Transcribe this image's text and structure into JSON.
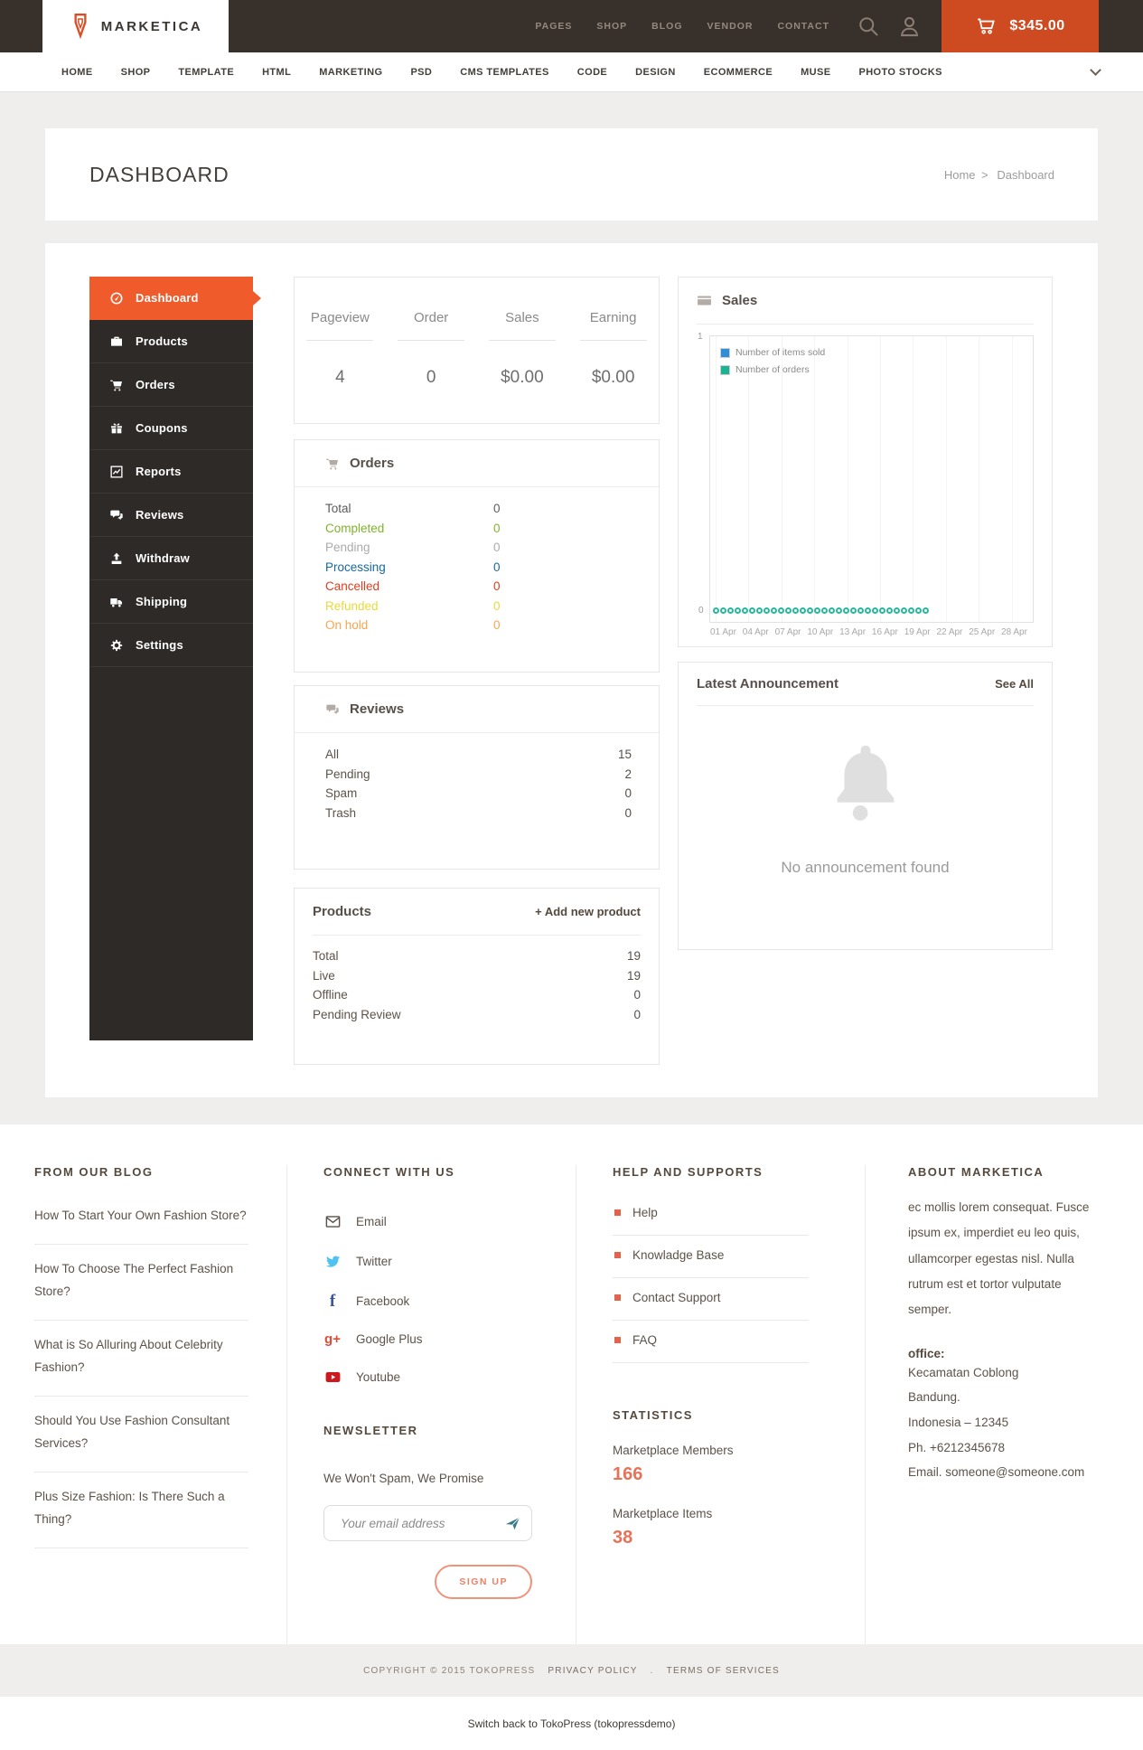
{
  "colors": {
    "accent_orange": "#f05b2c",
    "cart_orange": "#ce4a20",
    "header_dark": "#38302b",
    "sidebar_dark": "#2e2a27",
    "chart_blue": "#2e8fd8",
    "chart_teal": "#29b79c",
    "stat_salmon": "#e87258"
  },
  "topbar": {
    "brand": "MARKETICA",
    "menu": [
      {
        "label": "PAGES"
      },
      {
        "label": "SHOP"
      },
      {
        "label": "BLOG"
      },
      {
        "label": "VENDOR"
      },
      {
        "label": "CONTACT"
      }
    ],
    "cart_total": "$345.00"
  },
  "mainnav": {
    "items": [
      {
        "label": "HOME"
      },
      {
        "label": "SHOP"
      },
      {
        "label": "TEMPLATE"
      },
      {
        "label": "HTML"
      },
      {
        "label": "MARKETING"
      },
      {
        "label": "PSD"
      },
      {
        "label": "CMS TEMPLATES"
      },
      {
        "label": "CODE"
      },
      {
        "label": "DESIGN"
      },
      {
        "label": "ECOMMERCE"
      },
      {
        "label": "MUSE"
      },
      {
        "label": "PHOTO STOCKS"
      }
    ]
  },
  "page": {
    "title": "DASHBOARD",
    "breadcrumb": {
      "home": "Home",
      "sep": ">",
      "current": "Dashboard"
    }
  },
  "sidebar": {
    "items": [
      {
        "label": "Dashboard"
      },
      {
        "label": "Products"
      },
      {
        "label": "Orders"
      },
      {
        "label": "Coupons"
      },
      {
        "label": "Reports"
      },
      {
        "label": "Reviews"
      },
      {
        "label": "Withdraw"
      },
      {
        "label": "Shipping"
      },
      {
        "label": "Settings"
      }
    ]
  },
  "stats": {
    "columns": [
      {
        "label": "Pageview",
        "value": "4"
      },
      {
        "label": "Order",
        "value": "0"
      },
      {
        "label": "Sales",
        "value": "$0.00"
      },
      {
        "label": "Earning",
        "value": "$0.00"
      }
    ]
  },
  "orders_panel": {
    "title": "Orders",
    "rows": [
      {
        "label": "Total",
        "value": "0",
        "color": "#5b5b5b"
      },
      {
        "label": "Completed",
        "value": "0",
        "color": "#7eb42c"
      },
      {
        "label": "Pending",
        "value": "0",
        "color": "#ababab"
      },
      {
        "label": "Processing",
        "value": "0",
        "color": "#17699e"
      },
      {
        "label": "Cancelled",
        "value": "0",
        "color": "#df3d1d"
      },
      {
        "label": "Refunded",
        "value": "0",
        "color": "#ead93a"
      },
      {
        "label": "On hold",
        "value": "0",
        "color": "#f7a54f"
      }
    ]
  },
  "reviews_panel": {
    "title": "Reviews",
    "rows": [
      {
        "label": "All",
        "value": "15"
      },
      {
        "label": "Pending",
        "value": "2"
      },
      {
        "label": "Spam",
        "value": "0"
      },
      {
        "label": "Trash",
        "value": "0"
      }
    ]
  },
  "products_panel": {
    "title": "Products",
    "action": "+ Add new product",
    "rows": [
      {
        "label": "Total",
        "value": "19"
      },
      {
        "label": "Live",
        "value": "19"
      },
      {
        "label": "Offline",
        "value": "0"
      },
      {
        "label": "Pending Review",
        "value": "0"
      }
    ]
  },
  "sales_panel": {
    "title": "Sales",
    "y_top": "1",
    "y_bottom": "0",
    "legend": [
      {
        "label": "Number of items sold",
        "color": "#2e8fd8"
      },
      {
        "label": "Number of orders",
        "color": "#29b79c"
      }
    ],
    "x_ticks": [
      "01 Apr",
      "04 Apr",
      "07 Apr",
      "10 Apr",
      "13 Apr",
      "16 Apr",
      "19 Apr",
      "22 Apr",
      "25 Apr",
      "28 Apr"
    ]
  },
  "chart_data": {
    "type": "line",
    "title": "Sales",
    "ylim": [
      0,
      1
    ],
    "grid": "vertical-light",
    "legend_position": "top-left",
    "x": [
      "01 Apr",
      "02 Apr",
      "03 Apr",
      "04 Apr",
      "05 Apr",
      "06 Apr",
      "07 Apr",
      "08 Apr",
      "09 Apr",
      "10 Apr",
      "11 Apr",
      "12 Apr",
      "13 Apr",
      "14 Apr",
      "15 Apr",
      "16 Apr",
      "17 Apr",
      "18 Apr",
      "19 Apr",
      "20 Apr",
      "21 Apr",
      "22 Apr",
      "23 Apr",
      "24 Apr",
      "25 Apr",
      "26 Apr",
      "27 Apr",
      "28 Apr",
      "29 Apr",
      "30 Apr"
    ],
    "series": [
      {
        "name": "Number of items sold",
        "color": "#2e8fd8",
        "values": [
          0,
          0,
          0,
          0,
          0,
          0,
          0,
          0,
          0,
          0,
          0,
          0,
          0,
          0,
          0,
          0,
          0,
          0,
          0,
          0,
          0,
          0,
          0,
          0,
          0,
          0,
          0,
          0,
          0,
          0
        ]
      },
      {
        "name": "Number of orders",
        "color": "#29b79c",
        "values": [
          0,
          0,
          0,
          0,
          0,
          0,
          0,
          0,
          0,
          0,
          0,
          0,
          0,
          0,
          0,
          0,
          0,
          0,
          0,
          0,
          0,
          0,
          0,
          0,
          0,
          0,
          0,
          0,
          0,
          0
        ]
      }
    ]
  },
  "announcement_panel": {
    "title": "Latest Announcement",
    "action": "See All",
    "empty": "No announcement found"
  },
  "footer": {
    "blog": {
      "title": "FROM OUR BLOG",
      "posts": [
        {
          "label": "How To Start Your Own Fashion Store?"
        },
        {
          "label": "How To Choose The Perfect Fashion Store?"
        },
        {
          "label": "What is So Alluring About Celebrity Fashion?"
        },
        {
          "label": "Should You Use Fashion Consultant Services?"
        },
        {
          "label": "Plus Size Fashion: Is There Such a Thing?"
        }
      ]
    },
    "connect": {
      "title": "CONNECT WITH US",
      "links": [
        {
          "label": "Email"
        },
        {
          "label": "Twitter"
        },
        {
          "label": "Facebook"
        },
        {
          "label": "Google Plus"
        },
        {
          "label": "Youtube"
        }
      ]
    },
    "newsletter": {
      "title": "NEWSLETTER",
      "note": "We Won't Spam, We Promise",
      "placeholder": "Your email address",
      "button": "SIGN UP"
    },
    "help": {
      "title": "HELP AND SUPPORTS",
      "links": [
        {
          "label": "Help"
        },
        {
          "label": "Knowladge Base"
        },
        {
          "label": "Contact Support"
        },
        {
          "label": "FAQ"
        }
      ]
    },
    "statistics": {
      "title": "STATISTICS",
      "items": [
        {
          "label": "Marketplace Members",
          "value": "166"
        },
        {
          "label": "Marketplace Items",
          "value": "38"
        }
      ]
    },
    "about": {
      "title": "ABOUT MARKETICA",
      "text": "ec mollis lorem consequat. Fusce ipsum ex, imperdiet eu leo quis, ullamcorper egestas nisl. Nulla rutrum est et tortor vulputate semper.",
      "office_label": "office:",
      "address": [
        {
          "line": "Kecamatan Coblong"
        },
        {
          "line": "Bandung."
        },
        {
          "line": "Indonesia – 12345"
        },
        {
          "line": "Ph. +6212345678"
        },
        {
          "line": "Email. someone@someone.com"
        }
      ]
    }
  },
  "bottom": {
    "copyright": "COPYRIGHT © 2015 TOKOPRESS",
    "privacy": "PRIVACY POLICY",
    "sep": ".",
    "terms": "TERMS OF SERVICES",
    "switch_link": "Switch back to TokoPress (tokopressdemo)"
  }
}
